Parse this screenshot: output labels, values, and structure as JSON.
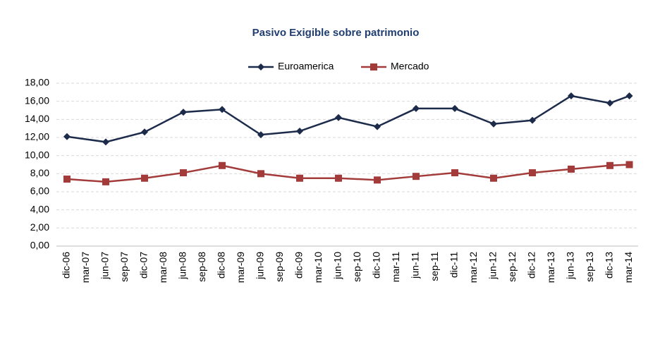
{
  "chart_data": {
    "type": "line",
    "title": "Pasivo Exigible sobre patrimonio",
    "xticks": [
      "dic-06",
      "mar-07",
      "jun-07",
      "sep-07",
      "dic-07",
      "mar-08",
      "jun-08",
      "sep-08",
      "dic-08",
      "mar-09",
      "jun-09",
      "sep-09",
      "dic-09",
      "mar-10",
      "jun-10",
      "sep-10",
      "dic-10",
      "mar-11",
      "jun-11",
      "sep-11",
      "dic-11",
      "mar-12",
      "jun-12",
      "sep-12",
      "dic-12",
      "mar-13",
      "jun-13",
      "sep-13",
      "dic-13",
      "mar-14"
    ],
    "x": [
      "dic-06",
      "jun-07",
      "dic-07",
      "jun-08",
      "dic-08",
      "jun-09",
      "dic-09",
      "jun-10",
      "dic-10",
      "jun-11",
      "dic-11",
      "jun-12",
      "dic-12",
      "jun-13",
      "dic-13",
      "mar-14"
    ],
    "series": [
      {
        "name": "Euroamerica",
        "color": "#1c2b4a",
        "marker": "diamond",
        "values": [
          12.1,
          11.5,
          12.6,
          14.8,
          15.1,
          12.3,
          12.7,
          14.2,
          13.2,
          15.2,
          15.2,
          13.5,
          13.9,
          16.6,
          15.8,
          16.6
        ]
      },
      {
        "name": "Mercado",
        "color": "#a33b3b",
        "marker": "square",
        "values": [
          7.4,
          7.1,
          7.5,
          8.1,
          8.9,
          8.0,
          7.5,
          7.5,
          7.3,
          7.7,
          8.1,
          7.5,
          8.1,
          8.5,
          8.9,
          9.0
        ]
      }
    ],
    "ylim": [
      0,
      18
    ],
    "yticks": [
      {
        "value": 0,
        "label": "0,00"
      },
      {
        "value": 2,
        "label": "2,00"
      },
      {
        "value": 4,
        "label": "4,00"
      },
      {
        "value": 6,
        "label": "6,00"
      },
      {
        "value": 8,
        "label": "8,00"
      },
      {
        "value": 10,
        "label": "10,00"
      },
      {
        "value": 12,
        "label": "12,00"
      },
      {
        "value": 14,
        "label": "14,00"
      },
      {
        "value": 16,
        "label": "16,00"
      },
      {
        "value": 18,
        "label": "18,00"
      }
    ],
    "grid": true,
    "legend": "top"
  }
}
